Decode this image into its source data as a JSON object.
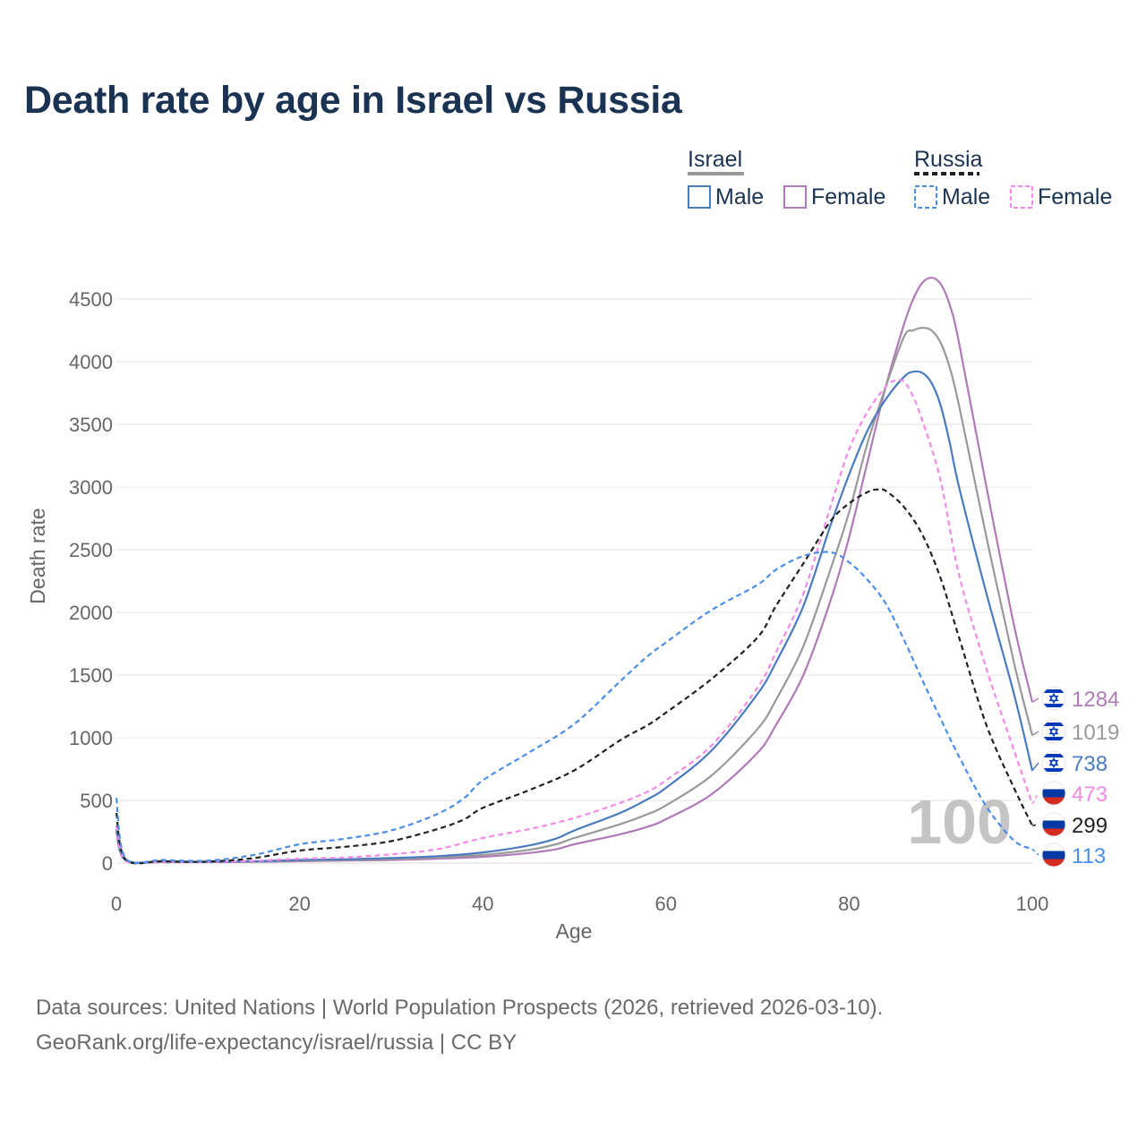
{
  "title": "Death rate by age in Israel vs Russia",
  "footer": {
    "line1": "Data sources: United Nations | World Population Prospects (2026, retrieved 2026-03-10).",
    "line2": "GeoRank.org/life-expectancy/israel/russia | CC BY"
  },
  "legend": {
    "groups": [
      {
        "name": "Israel",
        "color": "#999999",
        "dash": false,
        "items": [
          {
            "label": "Male",
            "color": "#4a7bbf"
          },
          {
            "label": "Female",
            "color": "#b07ab8"
          }
        ]
      },
      {
        "name": "Russia",
        "color": "#222222",
        "dash": true,
        "items": [
          {
            "label": "Male",
            "color": "#4a8ee8"
          },
          {
            "label": "Female",
            "color": "#f28ae8"
          }
        ]
      }
    ]
  },
  "year_label": "100",
  "chart_data": {
    "type": "line",
    "title": "Death rate by age in Israel vs Russia",
    "xlabel": "Age",
    "ylabel": "Death rate",
    "xlim": [
      0,
      100
    ],
    "ylim": [
      0,
      4700
    ],
    "x_ticks": [
      0,
      20,
      40,
      60,
      80,
      100
    ],
    "y_ticks": [
      0,
      500,
      1000,
      1500,
      2000,
      2500,
      3000,
      3500,
      4000,
      4500
    ],
    "grid": true,
    "series": [
      {
        "name": "Israel Female",
        "country": "Israel",
        "flag": "israel",
        "color": "#b07ab8",
        "dash": false,
        "end_label": "1284",
        "points": [
          [
            0,
            250
          ],
          [
            1,
            20
          ],
          [
            5,
            8
          ],
          [
            10,
            7
          ],
          [
            15,
            10
          ],
          [
            20,
            15
          ],
          [
            25,
            20
          ],
          [
            30,
            25
          ],
          [
            35,
            35
          ],
          [
            40,
            50
          ],
          [
            45,
            80
          ],
          [
            48,
            110
          ],
          [
            50,
            150
          ],
          [
            55,
            230
          ],
          [
            58,
            290
          ],
          [
            60,
            350
          ],
          [
            65,
            550
          ],
          [
            70,
            880
          ],
          [
            72,
            1100
          ],
          [
            75,
            1500
          ],
          [
            78,
            2100
          ],
          [
            80,
            2600
          ],
          [
            82,
            3200
          ],
          [
            84,
            3800
          ],
          [
            86,
            4300
          ],
          [
            87,
            4500
          ],
          [
            88,
            4630
          ],
          [
            89,
            4670
          ],
          [
            90,
            4620
          ],
          [
            91,
            4450
          ],
          [
            92,
            4150
          ],
          [
            95,
            3000
          ],
          [
            98,
            1900
          ],
          [
            100,
            1284
          ]
        ]
      },
      {
        "name": "Israel Total",
        "country": "Israel",
        "flag": "israel",
        "color": "#999999",
        "dash": false,
        "end_label": "1019",
        "points": [
          [
            0,
            260
          ],
          [
            1,
            22
          ],
          [
            5,
            10
          ],
          [
            10,
            8
          ],
          [
            15,
            12
          ],
          [
            20,
            20
          ],
          [
            25,
            25
          ],
          [
            30,
            32
          ],
          [
            35,
            45
          ],
          [
            40,
            65
          ],
          [
            45,
            105
          ],
          [
            48,
            150
          ],
          [
            50,
            200
          ],
          [
            55,
            310
          ],
          [
            58,
            390
          ],
          [
            60,
            460
          ],
          [
            65,
            700
          ],
          [
            70,
            1070
          ],
          [
            72,
            1300
          ],
          [
            75,
            1730
          ],
          [
            78,
            2350
          ],
          [
            80,
            2800
          ],
          [
            82,
            3350
          ],
          [
            84,
            3800
          ],
          [
            86,
            4200
          ],
          [
            87,
            4250
          ],
          [
            88,
            4270
          ],
          [
            89,
            4250
          ],
          [
            90,
            4150
          ],
          [
            91,
            3950
          ],
          [
            92,
            3650
          ],
          [
            95,
            2600
          ],
          [
            98,
            1600
          ],
          [
            100,
            1019
          ]
        ]
      },
      {
        "name": "Israel Male",
        "country": "Israel",
        "flag": "israel",
        "color": "#4a7bbf",
        "dash": false,
        "end_label": "738",
        "points": [
          [
            0,
            270
          ],
          [
            1,
            25
          ],
          [
            5,
            12
          ],
          [
            10,
            9
          ],
          [
            15,
            15
          ],
          [
            20,
            25
          ],
          [
            25,
            30
          ],
          [
            30,
            40
          ],
          [
            35,
            55
          ],
          [
            40,
            85
          ],
          [
            45,
            140
          ],
          [
            48,
            195
          ],
          [
            50,
            260
          ],
          [
            55,
            400
          ],
          [
            58,
            510
          ],
          [
            60,
            600
          ],
          [
            65,
            900
          ],
          [
            70,
            1350
          ],
          [
            72,
            1600
          ],
          [
            75,
            2050
          ],
          [
            78,
            2700
          ],
          [
            80,
            3100
          ],
          [
            82,
            3450
          ],
          [
            84,
            3700
          ],
          [
            86,
            3880
          ],
          [
            87,
            3920
          ],
          [
            88,
            3910
          ],
          [
            89,
            3830
          ],
          [
            90,
            3650
          ],
          [
            91,
            3350
          ],
          [
            92,
            3000
          ],
          [
            95,
            2150
          ],
          [
            98,
            1350
          ],
          [
            100,
            738
          ]
        ]
      },
      {
        "name": "Russia Female",
        "country": "Russia",
        "flag": "russia",
        "color": "#f28ae8",
        "dash": true,
        "end_label": "473",
        "points": [
          [
            0,
            300
          ],
          [
            1,
            22
          ],
          [
            5,
            12
          ],
          [
            10,
            10
          ],
          [
            15,
            18
          ],
          [
            20,
            35
          ],
          [
            25,
            45
          ],
          [
            30,
            70
          ],
          [
            35,
            110
          ],
          [
            40,
            200
          ],
          [
            45,
            270
          ],
          [
            50,
            360
          ],
          [
            55,
            480
          ],
          [
            58,
            570
          ],
          [
            60,
            660
          ],
          [
            65,
            940
          ],
          [
            70,
            1400
          ],
          [
            72,
            1680
          ],
          [
            75,
            2150
          ],
          [
            78,
            2850
          ],
          [
            80,
            3300
          ],
          [
            82,
            3600
          ],
          [
            84,
            3800
          ],
          [
            85,
            3850
          ],
          [
            86,
            3840
          ],
          [
            87,
            3720
          ],
          [
            88,
            3530
          ],
          [
            90,
            3050
          ],
          [
            92,
            2300
          ],
          [
            95,
            1550
          ],
          [
            98,
            900
          ],
          [
            100,
            473
          ]
        ]
      },
      {
        "name": "Russia Total",
        "country": "Russia",
        "flag": "russia",
        "color": "#222222",
        "dash": true,
        "end_label": "299",
        "points": [
          [
            0,
            400
          ],
          [
            1,
            30
          ],
          [
            5,
            15
          ],
          [
            10,
            12
          ],
          [
            15,
            40
          ],
          [
            20,
            100
          ],
          [
            25,
            130
          ],
          [
            30,
            175
          ],
          [
            35,
            270
          ],
          [
            38,
            350
          ],
          [
            40,
            440
          ],
          [
            45,
            580
          ],
          [
            50,
            740
          ],
          [
            55,
            980
          ],
          [
            58,
            1100
          ],
          [
            60,
            1200
          ],
          [
            65,
            1470
          ],
          [
            70,
            1800
          ],
          [
            72,
            2050
          ],
          [
            75,
            2390
          ],
          [
            78,
            2730
          ],
          [
            80,
            2870
          ],
          [
            82,
            2960
          ],
          [
            83,
            2980
          ],
          [
            84,
            2970
          ],
          [
            86,
            2840
          ],
          [
            88,
            2620
          ],
          [
            90,
            2270
          ],
          [
            92,
            1800
          ],
          [
            95,
            1100
          ],
          [
            98,
            600
          ],
          [
            100,
            299
          ]
        ]
      },
      {
        "name": "Russia Male",
        "country": "Russia",
        "flag": "russia",
        "color": "#4a8ee8",
        "dash": true,
        "end_label": "113",
        "points": [
          [
            0,
            520
          ],
          [
            1,
            40
          ],
          [
            5,
            25
          ],
          [
            10,
            20
          ],
          [
            15,
            65
          ],
          [
            20,
            150
          ],
          [
            25,
            195
          ],
          [
            30,
            260
          ],
          [
            35,
            390
          ],
          [
            38,
            520
          ],
          [
            40,
            660
          ],
          [
            45,
            880
          ],
          [
            50,
            1110
          ],
          [
            55,
            1450
          ],
          [
            58,
            1650
          ],
          [
            60,
            1760
          ],
          [
            65,
            2020
          ],
          [
            70,
            2220
          ],
          [
            72,
            2340
          ],
          [
            75,
            2450
          ],
          [
            78,
            2480
          ],
          [
            80,
            2400
          ],
          [
            82,
            2260
          ],
          [
            84,
            2070
          ],
          [
            86,
            1780
          ],
          [
            88,
            1460
          ],
          [
            90,
            1150
          ],
          [
            92,
            850
          ],
          [
            95,
            450
          ],
          [
            98,
            180
          ],
          [
            100,
            113
          ]
        ]
      }
    ]
  }
}
